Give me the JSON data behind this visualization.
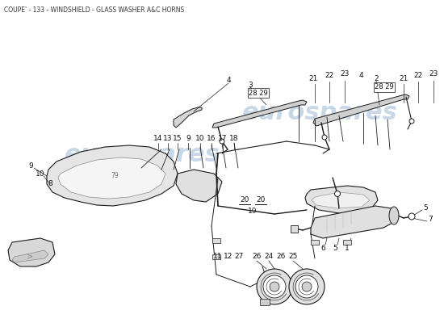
{
  "title": "COUPE' - 133 - WINDSHIELD - GLASS WASHER A&C HORNS",
  "title_fontsize": 5.5,
  "background_color": "#ffffff",
  "watermark_text": "eurospares",
  "watermark_color": "#c8d8e8",
  "watermark_fontsize": 22,
  "diagram_color": "#1a1a1a",
  "line_color": "#1a1a1a",
  "label_fontsize": 6.5
}
